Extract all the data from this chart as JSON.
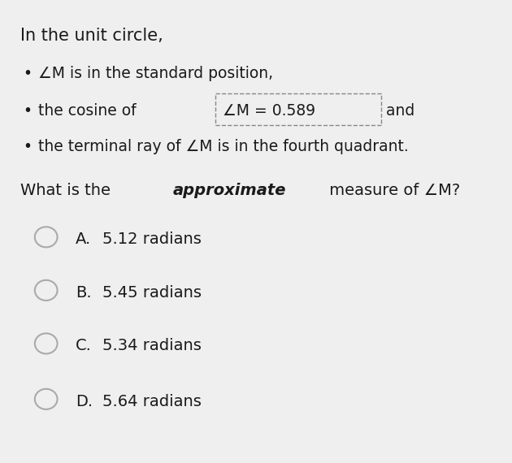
{
  "background_color": "#d0d0d0",
  "card_color": "#efefef",
  "title_line": "In the unit circle,",
  "bullet1": "∠M is in the standard position,",
  "bullet3": "the terminal ray of ∠M is in the fourth quadrant.",
  "text_color": "#1a1a1a",
  "circle_color": "#aaaaaa",
  "font_size_title": 15,
  "font_size_bullets": 13.5,
  "font_size_question": 14,
  "font_size_options": 14,
  "options": [
    {
      "letter": "A.",
      "value": "5.12 radians"
    },
    {
      "letter": "B.",
      "value": "5.45 radians"
    },
    {
      "letter": "C.",
      "value": "5.34 radians"
    },
    {
      "letter": "D.",
      "value": "5.64 radians"
    }
  ]
}
